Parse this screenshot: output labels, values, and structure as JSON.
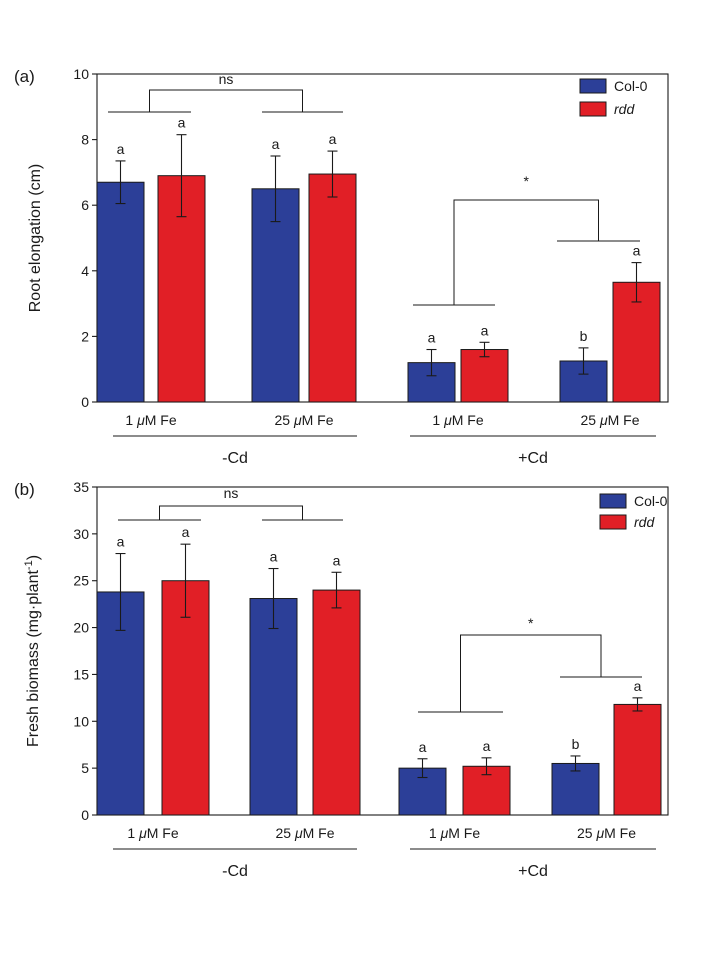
{
  "colors": {
    "col0": "#2c3f98",
    "rdd": "#e11f26"
  },
  "legend": [
    {
      "key": "col0",
      "label": "Col-0",
      "italic": false
    },
    {
      "key": "rdd",
      "label": "rdd",
      "italic": true
    }
  ],
  "chart_data": [
    {
      "type": "bar",
      "panel_label": "(a)",
      "ylabel": "Root elongation (cm)",
      "ylim": [
        0,
        10
      ],
      "yticks": [
        "0",
        "2",
        "4",
        "6",
        "8",
        "10"
      ],
      "categories": [
        "1 μM Fe",
        "25 μM Fe",
        "1 μM Fe",
        "25 μM Fe"
      ],
      "conditions": [
        "-Cd",
        "+Cd"
      ],
      "series": [
        {
          "name": "Col-0",
          "values": [
            6.7,
            6.5,
            1.2,
            1.25
          ],
          "errors": [
            0.65,
            1.0,
            0.4,
            0.4
          ],
          "letters": [
            "a",
            "a",
            "a",
            "b"
          ]
        },
        {
          "name": "rdd",
          "values": [
            6.9,
            6.95,
            1.6,
            3.65
          ],
          "errors": [
            1.25,
            0.7,
            0.22,
            0.6
          ],
          "letters": [
            "a",
            "a",
            "a",
            "a"
          ]
        }
      ],
      "significance": [
        "ns",
        "*"
      ]
    },
    {
      "type": "bar",
      "panel_label": "(b)",
      "ylabel": "Fresh biomass (mg·plant",
      "ylabel_sup": "-1",
      "ylabel_end": ")",
      "ylim": [
        0,
        35
      ],
      "yticks": [
        "0",
        "5",
        "10",
        "15",
        "20",
        "25",
        "30",
        "35"
      ],
      "categories": [
        "1 μM Fe",
        "25 μM Fe",
        "1 μM Fe",
        "25 μM Fe"
      ],
      "conditions": [
        "-Cd",
        "+Cd"
      ],
      "series": [
        {
          "name": "Col-0",
          "values": [
            23.8,
            23.1,
            5.0,
            5.5
          ],
          "errors": [
            4.1,
            3.2,
            1.0,
            0.8
          ],
          "letters": [
            "a",
            "a",
            "a",
            "b"
          ]
        },
        {
          "name": "rdd",
          "values": [
            25.0,
            24.0,
            5.2,
            11.8
          ],
          "errors": [
            3.9,
            1.9,
            0.9,
            0.7
          ],
          "letters": [
            "a",
            "a",
            "a",
            "a"
          ]
        }
      ],
      "significance": [
        "ns",
        "*"
      ]
    }
  ]
}
